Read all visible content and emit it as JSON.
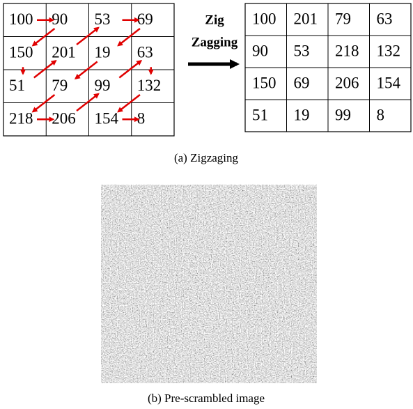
{
  "left_grid": {
    "rows": [
      [
        100,
        90,
        53,
        69
      ],
      [
        150,
        201,
        19,
        63
      ],
      [
        51,
        79,
        99,
        132
      ],
      [
        218,
        206,
        154,
        8
      ]
    ]
  },
  "arrow_label": {
    "lines": [
      "Zig",
      "Zagging"
    ]
  },
  "right_grid": {
    "rows": [
      [
        100,
        201,
        79,
        63
      ],
      [
        90,
        53,
        218,
        132
      ],
      [
        150,
        69,
        206,
        154
      ],
      [
        51,
        19,
        99,
        8
      ]
    ]
  },
  "captions": [
    "(a) Zigzaging",
    "(b) Pre-scrambled image"
  ]
}
